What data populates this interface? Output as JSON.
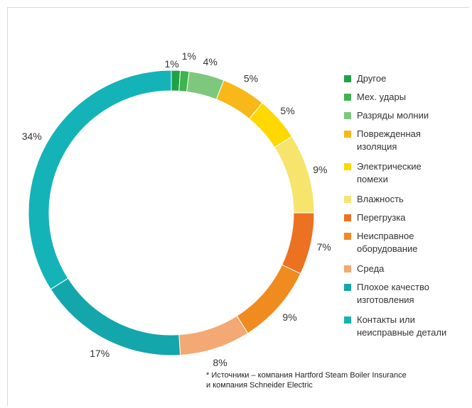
{
  "chart_data": {
    "type": "pie",
    "donut": true,
    "categories": [
      "Другое",
      "Мех. удары",
      "Разряды молнии",
      "Поврежденная\nизоляция",
      "Электрические\nпомехи",
      "Влажность",
      "Перегрузка",
      "Неисправное\nоборудование",
      "Среда",
      "Плохое качество\nизготовления",
      "Контакты или\nнеисправные детали"
    ],
    "values": [
      1,
      1,
      4,
      5,
      5,
      9,
      7,
      9,
      8,
      17,
      34
    ],
    "value_labels": [
      "1%",
      "1%",
      "4%",
      "5%",
      "5%",
      "9%",
      "7%",
      "9%",
      "8%",
      "17%",
      "34%"
    ],
    "colors": [
      "#1fa146",
      "#3fb34f",
      "#7ec87d",
      "#f8b81a",
      "#ffd800",
      "#f6e46d",
      "#ec7121",
      "#f08b1f",
      "#f4a873",
      "#13a6ab",
      "#14b3b8"
    ],
    "legend_position": "right"
  },
  "footnote": "* Источники – компания Hartford Steam Boiler Insurance\nи компания Schneider Electric"
}
